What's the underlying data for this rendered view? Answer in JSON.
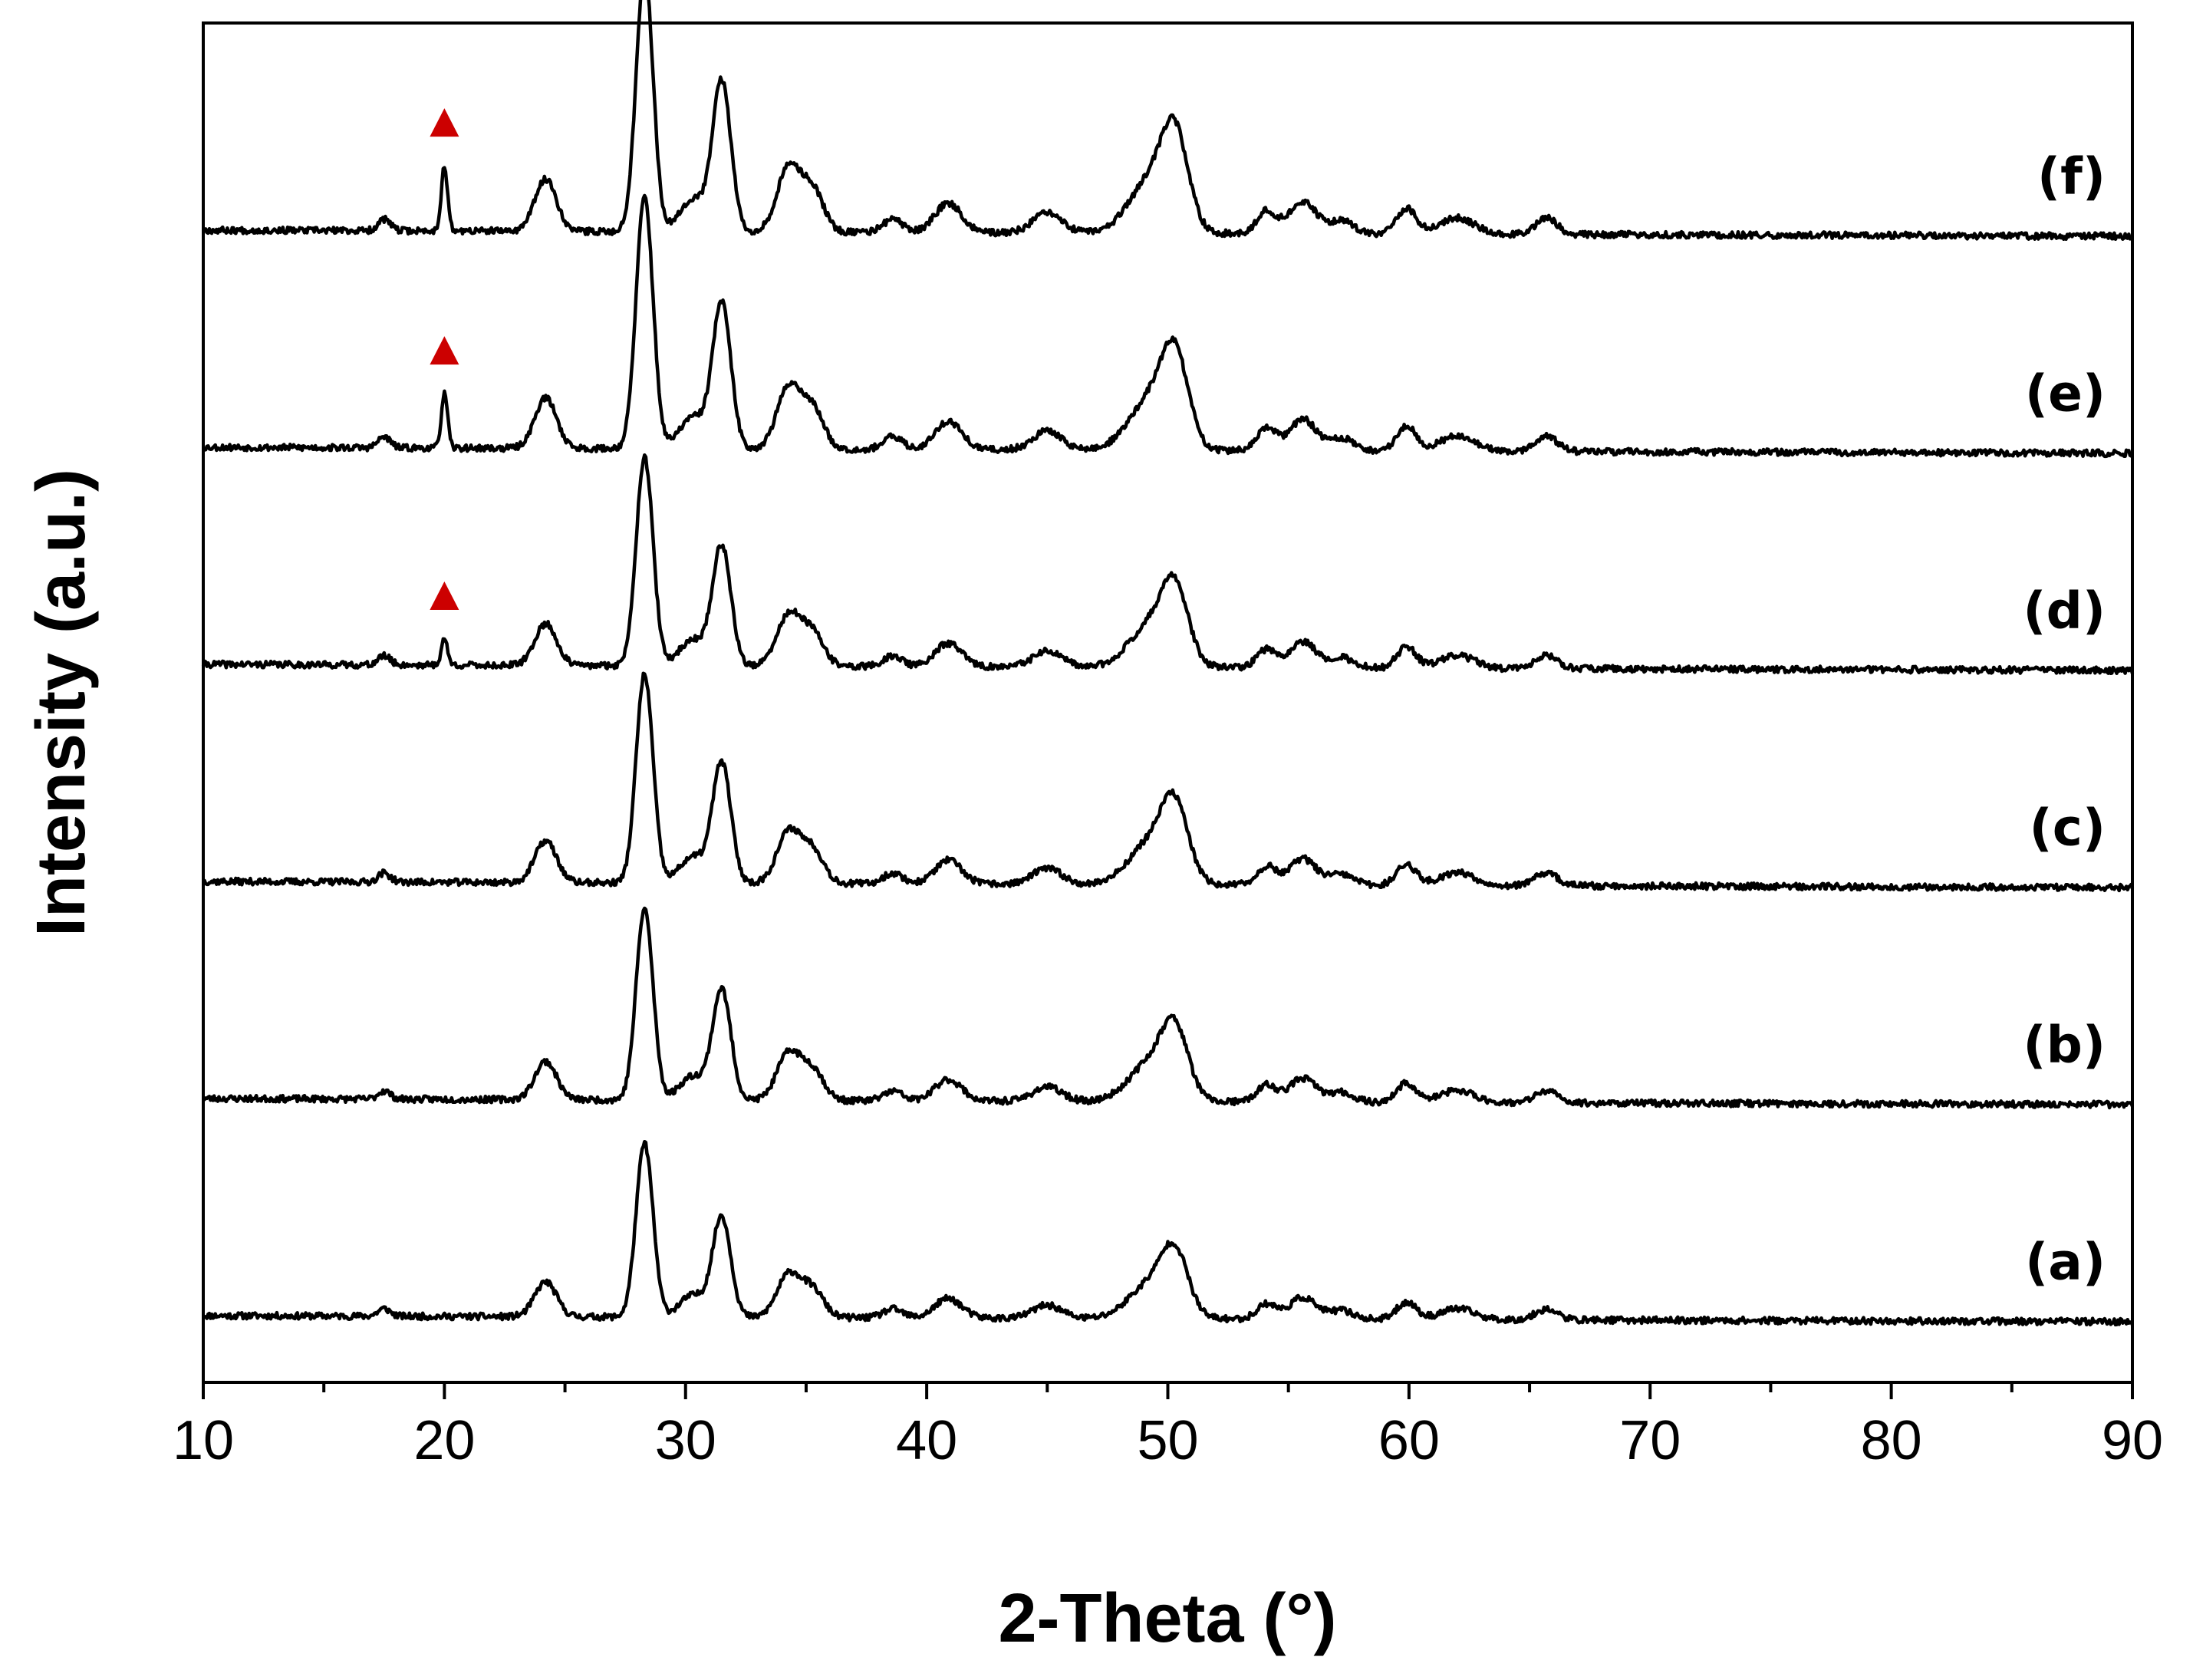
{
  "chart_data": {
    "type": "line",
    "title": "",
    "xlabel": "2-Theta (°)",
    "ylabel": "Intensity (a.u.)",
    "xlim": [
      10,
      90
    ],
    "x_ticks": [
      10,
      20,
      30,
      40,
      50,
      60,
      70,
      80,
      90
    ],
    "x_minor_step": 5,
    "y_ticks_shown": false,
    "grid": false,
    "legend": "none",
    "line_color": "#000000",
    "marker_color": "#cc0000",
    "baseline_tilt": 0.028,
    "peaks": [
      {
        "pos": 17.5,
        "height": 0.035,
        "width": 0.25
      },
      {
        "pos": 24.2,
        "height": 0.16,
        "width": 0.45
      },
      {
        "pos": 28.3,
        "height": 0.8,
        "width": 0.35
      },
      {
        "pos": 30.3,
        "height": 0.1,
        "width": 0.55
      },
      {
        "pos": 31.5,
        "height": 0.46,
        "width": 0.38
      },
      {
        "pos": 34.3,
        "height": 0.2,
        "width": 0.5
      },
      {
        "pos": 35.3,
        "height": 0.12,
        "width": 0.45
      },
      {
        "pos": 38.6,
        "height": 0.04,
        "width": 0.4
      },
      {
        "pos": 40.9,
        "height": 0.09,
        "width": 0.55
      },
      {
        "pos": 45.0,
        "height": 0.06,
        "width": 0.6
      },
      {
        "pos": 49.3,
        "height": 0.16,
        "width": 0.9
      },
      {
        "pos": 50.3,
        "height": 0.26,
        "width": 0.55
      },
      {
        "pos": 54.1,
        "height": 0.07,
        "width": 0.4
      },
      {
        "pos": 55.6,
        "height": 0.1,
        "width": 0.55
      },
      {
        "pos": 57.2,
        "height": 0.04,
        "width": 0.5
      },
      {
        "pos": 59.9,
        "height": 0.08,
        "width": 0.4
      },
      {
        "pos": 62.0,
        "height": 0.05,
        "width": 0.7
      },
      {
        "pos": 65.7,
        "height": 0.05,
        "width": 0.45
      }
    ],
    "series": [
      {
        "name": "(a)",
        "offset": 0.0,
        "scale": 1.0,
        "impurity": 0.0,
        "seed": 11
      },
      {
        "name": "(b)",
        "offset": 1.0,
        "scale": 1.1,
        "impurity": 0.0,
        "seed": 23
      },
      {
        "name": "(c)",
        "offset": 2.0,
        "scale": 1.2,
        "impurity": 0.0,
        "seed": 37
      },
      {
        "name": "(d)",
        "offset": 3.0,
        "scale": 1.2,
        "impurity": 0.12,
        "seed": 41
      },
      {
        "name": "(e)",
        "offset": 4.0,
        "scale": 1.45,
        "impurity": 0.25,
        "seed": 53
      },
      {
        "name": "(f)",
        "offset": 5.0,
        "scale": 1.5,
        "impurity": 0.3,
        "seed": 67
      }
    ],
    "annotations": [
      {
        "type": "triangle",
        "x": 20.0,
        "series": "(d)"
      },
      {
        "type": "triangle",
        "x": 20.0,
        "series": "(e)"
      },
      {
        "type": "triangle",
        "x": 20.0,
        "series": "(f)"
      }
    ]
  }
}
